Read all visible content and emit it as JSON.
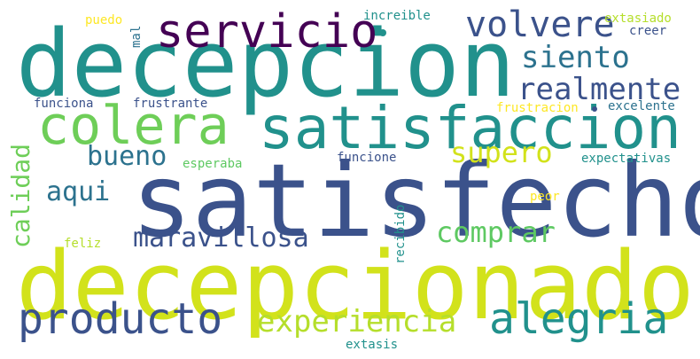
{
  "words": [
    {
      "key": "satisfecho",
      "text": "satisfecho",
      "color": "#3b528b"
    },
    {
      "key": "decepcionado",
      "text": "decepcionado",
      "color": "#d2e21b"
    },
    {
      "key": "decepcion",
      "text": "decepcion",
      "color": "#21918c"
    },
    {
      "key": "satisfaccion",
      "text": "satisfaccion",
      "color": "#21918c"
    },
    {
      "key": "colera",
      "text": "colera",
      "color": "#6ece58"
    },
    {
      "key": "servicio",
      "text": "servicio",
      "color": "#440154"
    },
    {
      "key": "volvere",
      "text": "volvere",
      "color": "#3b528b"
    },
    {
      "key": "siento",
      "text": "siento",
      "color": "#2c728e"
    },
    {
      "key": "realmente",
      "text": "realmente",
      "color": "#3b528b"
    },
    {
      "key": "calidad",
      "text": "calidad",
      "color": "#6ece58"
    },
    {
      "key": "bueno",
      "text": "bueno",
      "color": "#2c728e"
    },
    {
      "key": "supero",
      "text": "supero",
      "color": "#d2e21b"
    },
    {
      "key": "aqui",
      "text": "aqui",
      "color": "#2c728e"
    },
    {
      "key": "comprar",
      "text": "comprar",
      "color": "#5ec962"
    },
    {
      "key": "maravillosa",
      "text": "maravillosa",
      "color": "#3b528b"
    },
    {
      "key": "producto",
      "text": "producto",
      "color": "#3b528b"
    },
    {
      "key": "experiencia",
      "text": "experiencia",
      "color": "#b5de2b"
    },
    {
      "key": "alegria",
      "text": "alegria",
      "color": "#21918c"
    },
    {
      "key": "puedo",
      "text": "puedo",
      "color": "#fde725"
    },
    {
      "key": "mal",
      "text": "mal",
      "color": "#2c728e"
    },
    {
      "key": "increible",
      "text": "increible",
      "color": "#21918c"
    },
    {
      "key": "extasiado",
      "text": "extasiado",
      "color": "#b5de2b"
    },
    {
      "key": "creer",
      "text": "creer",
      "color": "#3b528b"
    },
    {
      "key": "funciona",
      "text": "funciona",
      "color": "#3b528b"
    },
    {
      "key": "frustrante",
      "text": "frustrante",
      "color": "#3b528b"
    },
    {
      "key": "frustracion",
      "text": "frustracion",
      "color": "#fde725"
    },
    {
      "key": "excelente",
      "text": "excelente",
      "color": "#2c728e"
    },
    {
      "key": "esperaba",
      "text": "esperaba",
      "color": "#5ec962"
    },
    {
      "key": "funcione",
      "text": "funcione",
      "color": "#3b528b"
    },
    {
      "key": "expectativas",
      "text": "expectativas",
      "color": "#21918c"
    },
    {
      "key": "peor",
      "text": "peor",
      "color": "#fde725"
    },
    {
      "key": "recibido",
      "text": "recibido",
      "color": "#21918c"
    },
    {
      "key": "feliz",
      "text": "feliz",
      "color": "#b5de2b"
    },
    {
      "key": "extasis",
      "text": "extasis",
      "color": "#21918c"
    }
  ]
}
